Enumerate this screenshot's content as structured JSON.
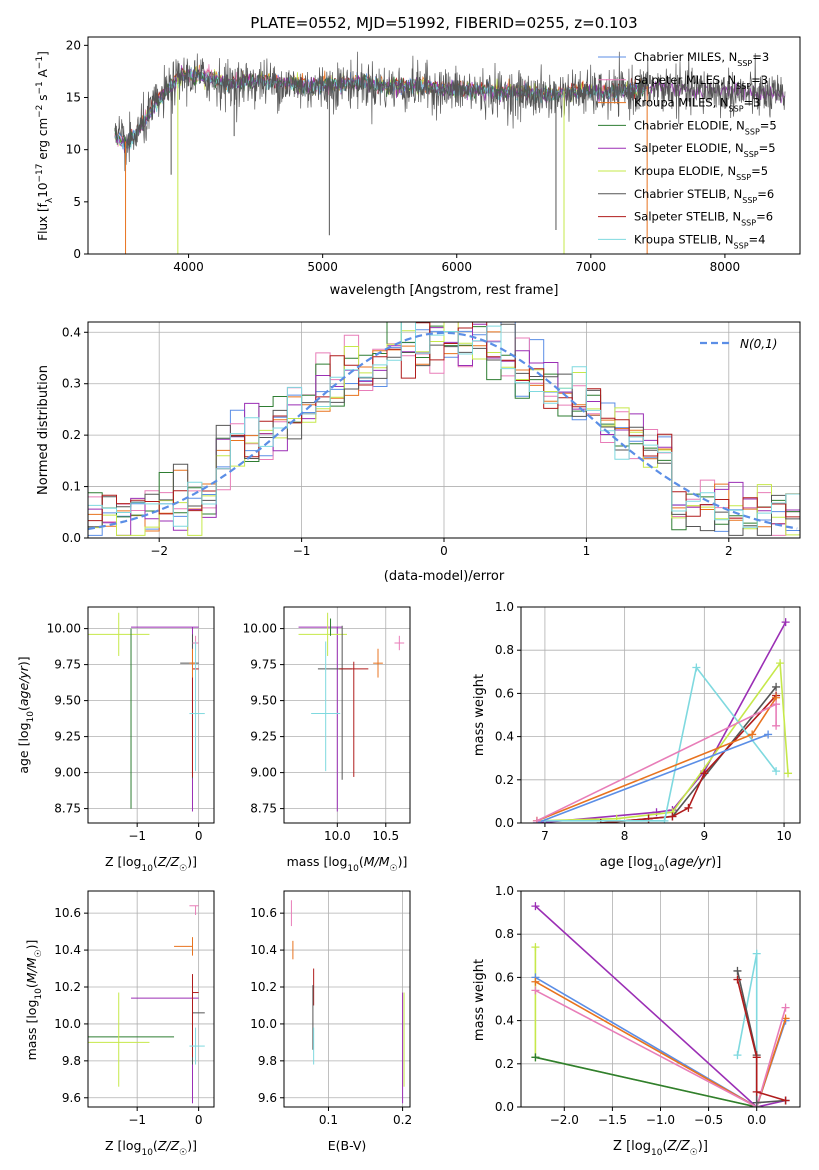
{
  "figure_title": "PLATE=0552, MJD=51992, FIBERID=0255, z=0.103",
  "colors": {
    "chabrier_miles": "#5b8ee6",
    "salpeter_miles": "#e87db8",
    "kroupa_miles": "#e8731f",
    "chabrier_elodie": "#2e7d32",
    "salpeter_elodie": "#9b2fb5",
    "kroupa_elodie": "#c6e84a",
    "chabrier_stelib": "#555555",
    "salpeter_stelib": "#b01c1c",
    "kroupa_stelib": "#7fd9df",
    "gaussian": "#5b8ee6",
    "grid": "#b0b0b0"
  },
  "chart_data": [
    {
      "id": "spectrum",
      "type": "line",
      "xlabel": "wavelength [Angstrom, rest frame]",
      "ylabel": "Flux [f",
      "xlim": [
        3250,
        8560
      ],
      "ylim": [
        0,
        20.8
      ],
      "xticks": [
        4000,
        5000,
        6000,
        7000,
        8000
      ],
      "yticks": [
        0,
        5,
        10,
        15,
        20
      ],
      "grid": false,
      "legend_position": "top-right",
      "legend": [
        {
          "key": "chabrier_miles",
          "name": "Chabrier MILES, N",
          "sub": "SSP",
          "n": "=3"
        },
        {
          "key": "salpeter_miles",
          "name": "Salpeter MILES, N",
          "sub": "SSP",
          "n": "=3"
        },
        {
          "key": "kroupa_miles",
          "name": "Kroupa MILES, N",
          "sub": "SSP",
          "n": "=3"
        },
        {
          "key": "chabrier_elodie",
          "name": "Chabrier ELODIE, N",
          "sub": "SSP",
          "n": "=5"
        },
        {
          "key": "salpeter_elodie",
          "name": "Salpeter ELODIE, N",
          "sub": "SSP",
          "n": "=5"
        },
        {
          "key": "kroupa_elodie",
          "name": "Kroupa ELODIE, N",
          "sub": "SSP",
          "n": "=5"
        },
        {
          "key": "chabrier_stelib",
          "name": "Chabrier STELIB, N",
          "sub": "SSP",
          "n": "=6"
        },
        {
          "key": "salpeter_stelib",
          "name": "Salpeter STELIB, N",
          "sub": "SSP",
          "n": "=6"
        },
        {
          "key": "kroupa_stelib",
          "name": "Kroupa STELIB, N",
          "sub": "SSP",
          "n": "=4"
        }
      ],
      "envelope": [
        [
          3450,
          11.5
        ],
        [
          3550,
          10.6
        ],
        [
          3650,
          12.5
        ],
        [
          3750,
          14.5
        ],
        [
          3850,
          16.0
        ],
        [
          3950,
          17.3
        ],
        [
          4100,
          17.2
        ],
        [
          4300,
          16.5
        ],
        [
          4500,
          16.8
        ],
        [
          4700,
          16.6
        ],
        [
          4900,
          16.2
        ],
        [
          5100,
          16.5
        ],
        [
          5300,
          16.6
        ],
        [
          5500,
          16.2
        ],
        [
          5700,
          16.3
        ],
        [
          5900,
          16.0
        ],
        [
          6100,
          15.9
        ],
        [
          6300,
          15.7
        ],
        [
          6500,
          15.6
        ],
        [
          6700,
          15.4
        ],
        [
          6900,
          15.8
        ],
        [
          7100,
          15.6
        ],
        [
          7300,
          15.9
        ],
        [
          7500,
          16.2
        ],
        [
          7700,
          16.0
        ],
        [
          7900,
          15.9
        ],
        [
          8100,
          15.8
        ],
        [
          8300,
          15.5
        ],
        [
          8450,
          15.2
        ]
      ],
      "drops": [
        [
          3530,
          0
        ],
        [
          3920,
          0
        ],
        [
          6800,
          0
        ],
        [
          7420,
          0
        ],
        [
          5050,
          1.8
        ],
        [
          6740,
          2.3
        ],
        [
          3870,
          7.6
        ],
        [
          4340,
          11.3
        ]
      ]
    },
    {
      "id": "residuals",
      "type": "bar",
      "xlabel": "(data-model)/error",
      "ylabel": "Normed distribution",
      "xlim": [
        -2.5,
        2.5
      ],
      "ylim": [
        0,
        0.42
      ],
      "xticks": [
        -2,
        -1,
        0,
        1,
        2
      ],
      "yticks": [
        0.0,
        0.1,
        0.2,
        0.3,
        0.4
      ],
      "grid": true,
      "legend_position": "top-right",
      "gaussian_label": "N(0,1)",
      "bin_width": 0.1
    },
    {
      "id": "age_vs_z",
      "type": "scatter",
      "xlabel": "Z [log10(Z/Z☉)]",
      "ylabel": "age [log10(age/yr)]",
      "xlim": [
        -1.8,
        0.25
      ],
      "ylim": [
        8.65,
        10.15
      ],
      "xticks": [
        -1,
        0
      ],
      "yticks": [
        8.75,
        9.0,
        9.25,
        9.5,
        9.75,
        10.0
      ],
      "grid": true,
      "points": [
        {
          "key": "kroupa_elodie",
          "x": -1.3,
          "xerr": [
            0.55,
            0.5
          ],
          "y": 9.96,
          "yerr": [
            0.15,
            0.15
          ]
        },
        {
          "key": "salpeter_elodie",
          "x": -0.1,
          "xerr": [
            1.0,
            0.1
          ],
          "y": 10.01,
          "yerr": [
            1.28,
            0
          ]
        },
        {
          "key": "chabrier_elodie",
          "x": -1.1,
          "xerr": [
            0,
            0
          ],
          "y": 9.95,
          "yerr": [
            1.2,
            0.05
          ]
        },
        {
          "key": "chabrier_stelib",
          "x": -0.1,
          "xerr": [
            0.2,
            0.1
          ],
          "y": 9.76,
          "yerr": [
            0.8,
            0.2
          ]
        },
        {
          "key": "salpeter_stelib",
          "x": -0.1,
          "xerr": [
            0,
            0.1
          ],
          "y": 9.72,
          "yerr": [
            0.75,
            0.05
          ]
        },
        {
          "key": "kroupa_miles",
          "x": -0.1,
          "xerr": [
            0.05,
            0.05
          ],
          "y": 9.76,
          "yerr": [
            0.1,
            0.1
          ]
        },
        {
          "key": "salpeter_miles",
          "x": -0.05,
          "xerr": [
            0.05,
            0.05
          ],
          "y": 9.9,
          "yerr": [
            0.05,
            0.05
          ]
        },
        {
          "key": "kroupa_stelib",
          "x": -0.05,
          "xerr": [
            0.1,
            0.15
          ],
          "y": 9.41,
          "yerr": [
            0.4,
            0.5
          ]
        }
      ]
    },
    {
      "id": "age_vs_mass",
      "type": "scatter",
      "xlabel": "mass [log10(M/M☉)]",
      "ylabel": "",
      "xlim": [
        9.45,
        10.75
      ],
      "ylim": [
        8.65,
        10.15
      ],
      "xticks": [
        10.0,
        10.5
      ],
      "yticks": [
        8.75,
        9.0,
        9.25,
        9.5,
        9.75,
        10.0
      ],
      "grid": true,
      "points": [
        {
          "key": "salpeter_elodie",
          "x": 10.0,
          "xerr": [
            0.4,
            0.05
          ],
          "y": 10.01,
          "yerr": [
            1.28,
            0
          ]
        },
        {
          "key": "kroupa_elodie",
          "x": 9.9,
          "xerr": [
            0.3,
            0.2
          ],
          "y": 9.96,
          "yerr": [
            0.15,
            0.15
          ]
        },
        {
          "key": "chabrier_elodie",
          "x": 9.93,
          "xerr": [
            0,
            0
          ],
          "y": 9.95,
          "yerr": [
            0,
            0.12
          ]
        },
        {
          "key": "chabrier_stelib",
          "x": 10.05,
          "xerr": [
            0.25,
            0.1
          ],
          "y": 9.72,
          "yerr": [
            0.77,
            0.3
          ]
        },
        {
          "key": "salpeter_stelib",
          "x": 10.17,
          "xerr": [
            0.15,
            0.15
          ],
          "y": 9.72,
          "yerr": [
            0.75,
            0.05
          ]
        },
        {
          "key": "kroupa_stelib",
          "x": 9.88,
          "xerr": [
            0.15,
            0.15
          ],
          "y": 9.41,
          "yerr": [
            0.4,
            0.5
          ]
        },
        {
          "key": "kroupa_miles",
          "x": 10.42,
          "xerr": [
            0.05,
            0.05
          ],
          "y": 9.76,
          "yerr": [
            0.1,
            0.1
          ]
        },
        {
          "key": "salpeter_miles",
          "x": 10.64,
          "xerr": [
            0.05,
            0.05
          ],
          "y": 9.9,
          "yerr": [
            0.05,
            0.05
          ]
        }
      ]
    },
    {
      "id": "weight_vs_age",
      "type": "line",
      "xlabel": "age [log10(age/yr)]",
      "ylabel": "mass weight",
      "xlim": [
        6.7,
        10.2
      ],
      "ylim": [
        0,
        1.0
      ],
      "xticks": [
        7,
        8,
        9,
        10
      ],
      "yticks": [
        0.0,
        0.2,
        0.4,
        0.6,
        0.8,
        1.0
      ],
      "grid": true,
      "series": [
        {
          "key": "salpeter_elodie",
          "x": [
            6.9,
            8.4,
            8.6,
            9.0,
            10.02
          ],
          "y": [
            0.0,
            0.05,
            0.06,
            0.24,
            0.93
          ]
        },
        {
          "key": "kroupa_elodie",
          "x": 6.9,
          "xs": [
            6.9,
            7.9,
            8.6,
            9.95,
            10.05
          ],
          "y": [
            0.01,
            0.02,
            0.05,
            0.74,
            0.23
          ]
        },
        {
          "key": "chabrier_stelib",
          "x": [
            7.7,
            8.3,
            8.6,
            9.9
          ],
          "y": [
            0.0,
            0.02,
            0.03,
            0.63
          ]
        },
        {
          "key": "salpeter_stelib",
          "x": [
            7.7,
            8.3,
            8.6,
            8.8,
            9.0,
            9.9
          ],
          "y": [
            0.0,
            0.02,
            0.03,
            0.07,
            0.23,
            0.59
          ]
        },
        {
          "key": "kroupa_stelib",
          "x": [
            7.0,
            8.5,
            8.9,
            9.9
          ],
          "y": [
            0.01,
            0.01,
            0.72,
            0.24
          ]
        },
        {
          "key": "chabrier_miles",
          "x": [
            6.9,
            9.8
          ],
          "y": [
            0.0,
            0.41
          ]
        },
        {
          "key": "kroupa_miles",
          "x": [
            6.9,
            9.6,
            9.9
          ],
          "y": [
            0.01,
            0.41,
            0.58
          ]
        },
        {
          "key": "salpeter_miles",
          "x": [
            6.9,
            9.9,
            9.9
          ],
          "y": [
            0.01,
            0.55,
            0.45
          ]
        }
      ]
    },
    {
      "id": "mass_vs_z",
      "type": "scatter",
      "xlabel": "Z [log10(Z/Z☉)]",
      "ylabel": "mass [log10(M/M☉)]",
      "xlim": [
        -1.8,
        0.25
      ],
      "ylim": [
        9.55,
        10.72
      ],
      "xticks": [
        -1,
        0
      ],
      "yticks": [
        9.6,
        9.8,
        10.0,
        10.2,
        10.4,
        10.6
      ],
      "grid": true,
      "points": [
        {
          "key": "chabrier_elodie",
          "x": -1.3,
          "xerr": [
            0.55,
            0.9
          ],
          "y": 9.93,
          "yerr": [
            0,
            0
          ]
        },
        {
          "key": "kroupa_elodie",
          "x": -1.3,
          "xerr": [
            0.55,
            0.5
          ],
          "y": 9.9,
          "yerr": [
            0.24,
            0.27
          ]
        },
        {
          "key": "salpeter_elodie",
          "x": -0.1,
          "xerr": [
            1.0,
            0.1
          ],
          "y": 10.14,
          "yerr": [
            0.57,
            0.03
          ]
        },
        {
          "key": "chabrier_stelib",
          "x": -0.1,
          "xerr": [
            0,
            0.2
          ],
          "y": 10.06,
          "yerr": [
            0.28,
            0.11
          ]
        },
        {
          "key": "salpeter_stelib",
          "x": -0.1,
          "xerr": [
            0,
            0.1
          ],
          "y": 10.17,
          "yerr": [
            0.35,
            0.1
          ]
        },
        {
          "key": "kroupa_stelib",
          "x": -0.05,
          "xerr": [
            0.1,
            0.15
          ],
          "y": 9.88,
          "yerr": [
            0.1,
            0.1
          ]
        },
        {
          "key": "kroupa_miles",
          "x": -0.1,
          "xerr": [
            0.3,
            0
          ],
          "y": 10.42,
          "yerr": [
            0.05,
            0.05
          ]
        },
        {
          "key": "salpeter_miles",
          "x": -0.05,
          "xerr": [
            0.1,
            0.05
          ],
          "y": 10.64,
          "yerr": [
            0.05,
            0
          ]
        }
      ]
    },
    {
      "id": "mass_vs_ebv",
      "type": "scatter",
      "xlabel": "E(B-V)",
      "ylabel": "",
      "xlim": [
        0.04,
        0.21
      ],
      "ylim": [
        9.55,
        10.72
      ],
      "xticks": [
        0.1,
        0.2
      ],
      "yticks": [
        9.6,
        9.8,
        10.0,
        10.2,
        10.4,
        10.6
      ],
      "grid": true,
      "points": [
        {
          "key": "salpeter_miles",
          "x": 0.05,
          "xerr": [
            0,
            0
          ],
          "y": 10.6,
          "yerr": [
            0.07,
            0.07
          ]
        },
        {
          "key": "kroupa_miles",
          "x": 0.052,
          "xerr": [
            0,
            0
          ],
          "y": 10.4,
          "yerr": [
            0.05,
            0.05
          ]
        },
        {
          "key": "salpeter_stelib",
          "x": 0.08,
          "xerr": [
            0,
            0
          ],
          "y": 10.2,
          "yerr": [
            0.1,
            0.1
          ]
        },
        {
          "key": "chabrier_stelib",
          "x": 0.079,
          "xerr": [
            0,
            0
          ],
          "y": 10.06,
          "yerr": [
            0.2,
            0.15
          ]
        },
        {
          "key": "kroupa_stelib",
          "x": 0.08,
          "xerr": [
            0,
            0
          ],
          "y": 9.88,
          "yerr": [
            0.1,
            0.1
          ]
        },
        {
          "key": "kroupa_elodie",
          "x": 0.202,
          "xerr": [
            0,
            0
          ],
          "y": 9.9,
          "yerr": [
            0.24,
            0.27
          ]
        },
        {
          "key": "salpeter_elodie",
          "x": 0.2,
          "xerr": [
            0,
            0
          ],
          "y": 10.14,
          "yerr": [
            0.57,
            0.03
          ]
        }
      ]
    },
    {
      "id": "weight_vs_z",
      "type": "line",
      "xlabel": "Z [log10(Z/Z☉)]",
      "ylabel": "mass weight",
      "xlim": [
        -2.45,
        0.45
      ],
      "ylim": [
        0,
        1.0
      ],
      "xticks": [
        -2.0,
        -1.5,
        -1.0,
        -0.5,
        0.0
      ],
      "yticks": [
        0.0,
        0.2,
        0.4,
        0.6,
        0.8,
        1.0
      ],
      "grid": true,
      "series": [
        {
          "key": "salpeter_elodie",
          "x": [
            -2.3,
            0.0,
            0.3
          ],
          "y": [
            0.93,
            0.0,
            0.03
          ]
        },
        {
          "key": "kroupa_elodie",
          "x": [
            -2.3,
            -2.3,
            0.0
          ],
          "y": [
            0.74,
            0.23,
            0.0
          ]
        },
        {
          "key": "chabrier_elodie",
          "x": [
            -2.3,
            0.0
          ],
          "y": [
            0.23,
            0.0
          ]
        },
        {
          "key": "chabrier_miles",
          "x": [
            -2.3,
            0.0,
            0.3
          ],
          "y": [
            0.6,
            0.0,
            0.4
          ]
        },
        {
          "key": "kroupa_miles",
          "x": [
            -2.3,
            0.0,
            0.3
          ],
          "y": [
            0.58,
            0.0,
            0.41
          ]
        },
        {
          "key": "salpeter_miles",
          "x": [
            -2.3,
            0.0,
            0.3
          ],
          "y": [
            0.54,
            0.0,
            0.46
          ]
        },
        {
          "key": "kroupa_stelib",
          "x": [
            -0.2,
            0.0,
            0.0
          ],
          "y": [
            0.24,
            0.71,
            0.0
          ]
        },
        {
          "key": "chabrier_stelib",
          "x": [
            -0.2,
            0.0,
            0.0,
            0.3
          ],
          "y": [
            0.63,
            0.24,
            0.02,
            0.03
          ]
        },
        {
          "key": "salpeter_stelib",
          "x": [
            -0.2,
            0.0,
            0.0,
            0.3
          ],
          "y": [
            0.59,
            0.23,
            0.07,
            0.03
          ]
        }
      ]
    }
  ]
}
